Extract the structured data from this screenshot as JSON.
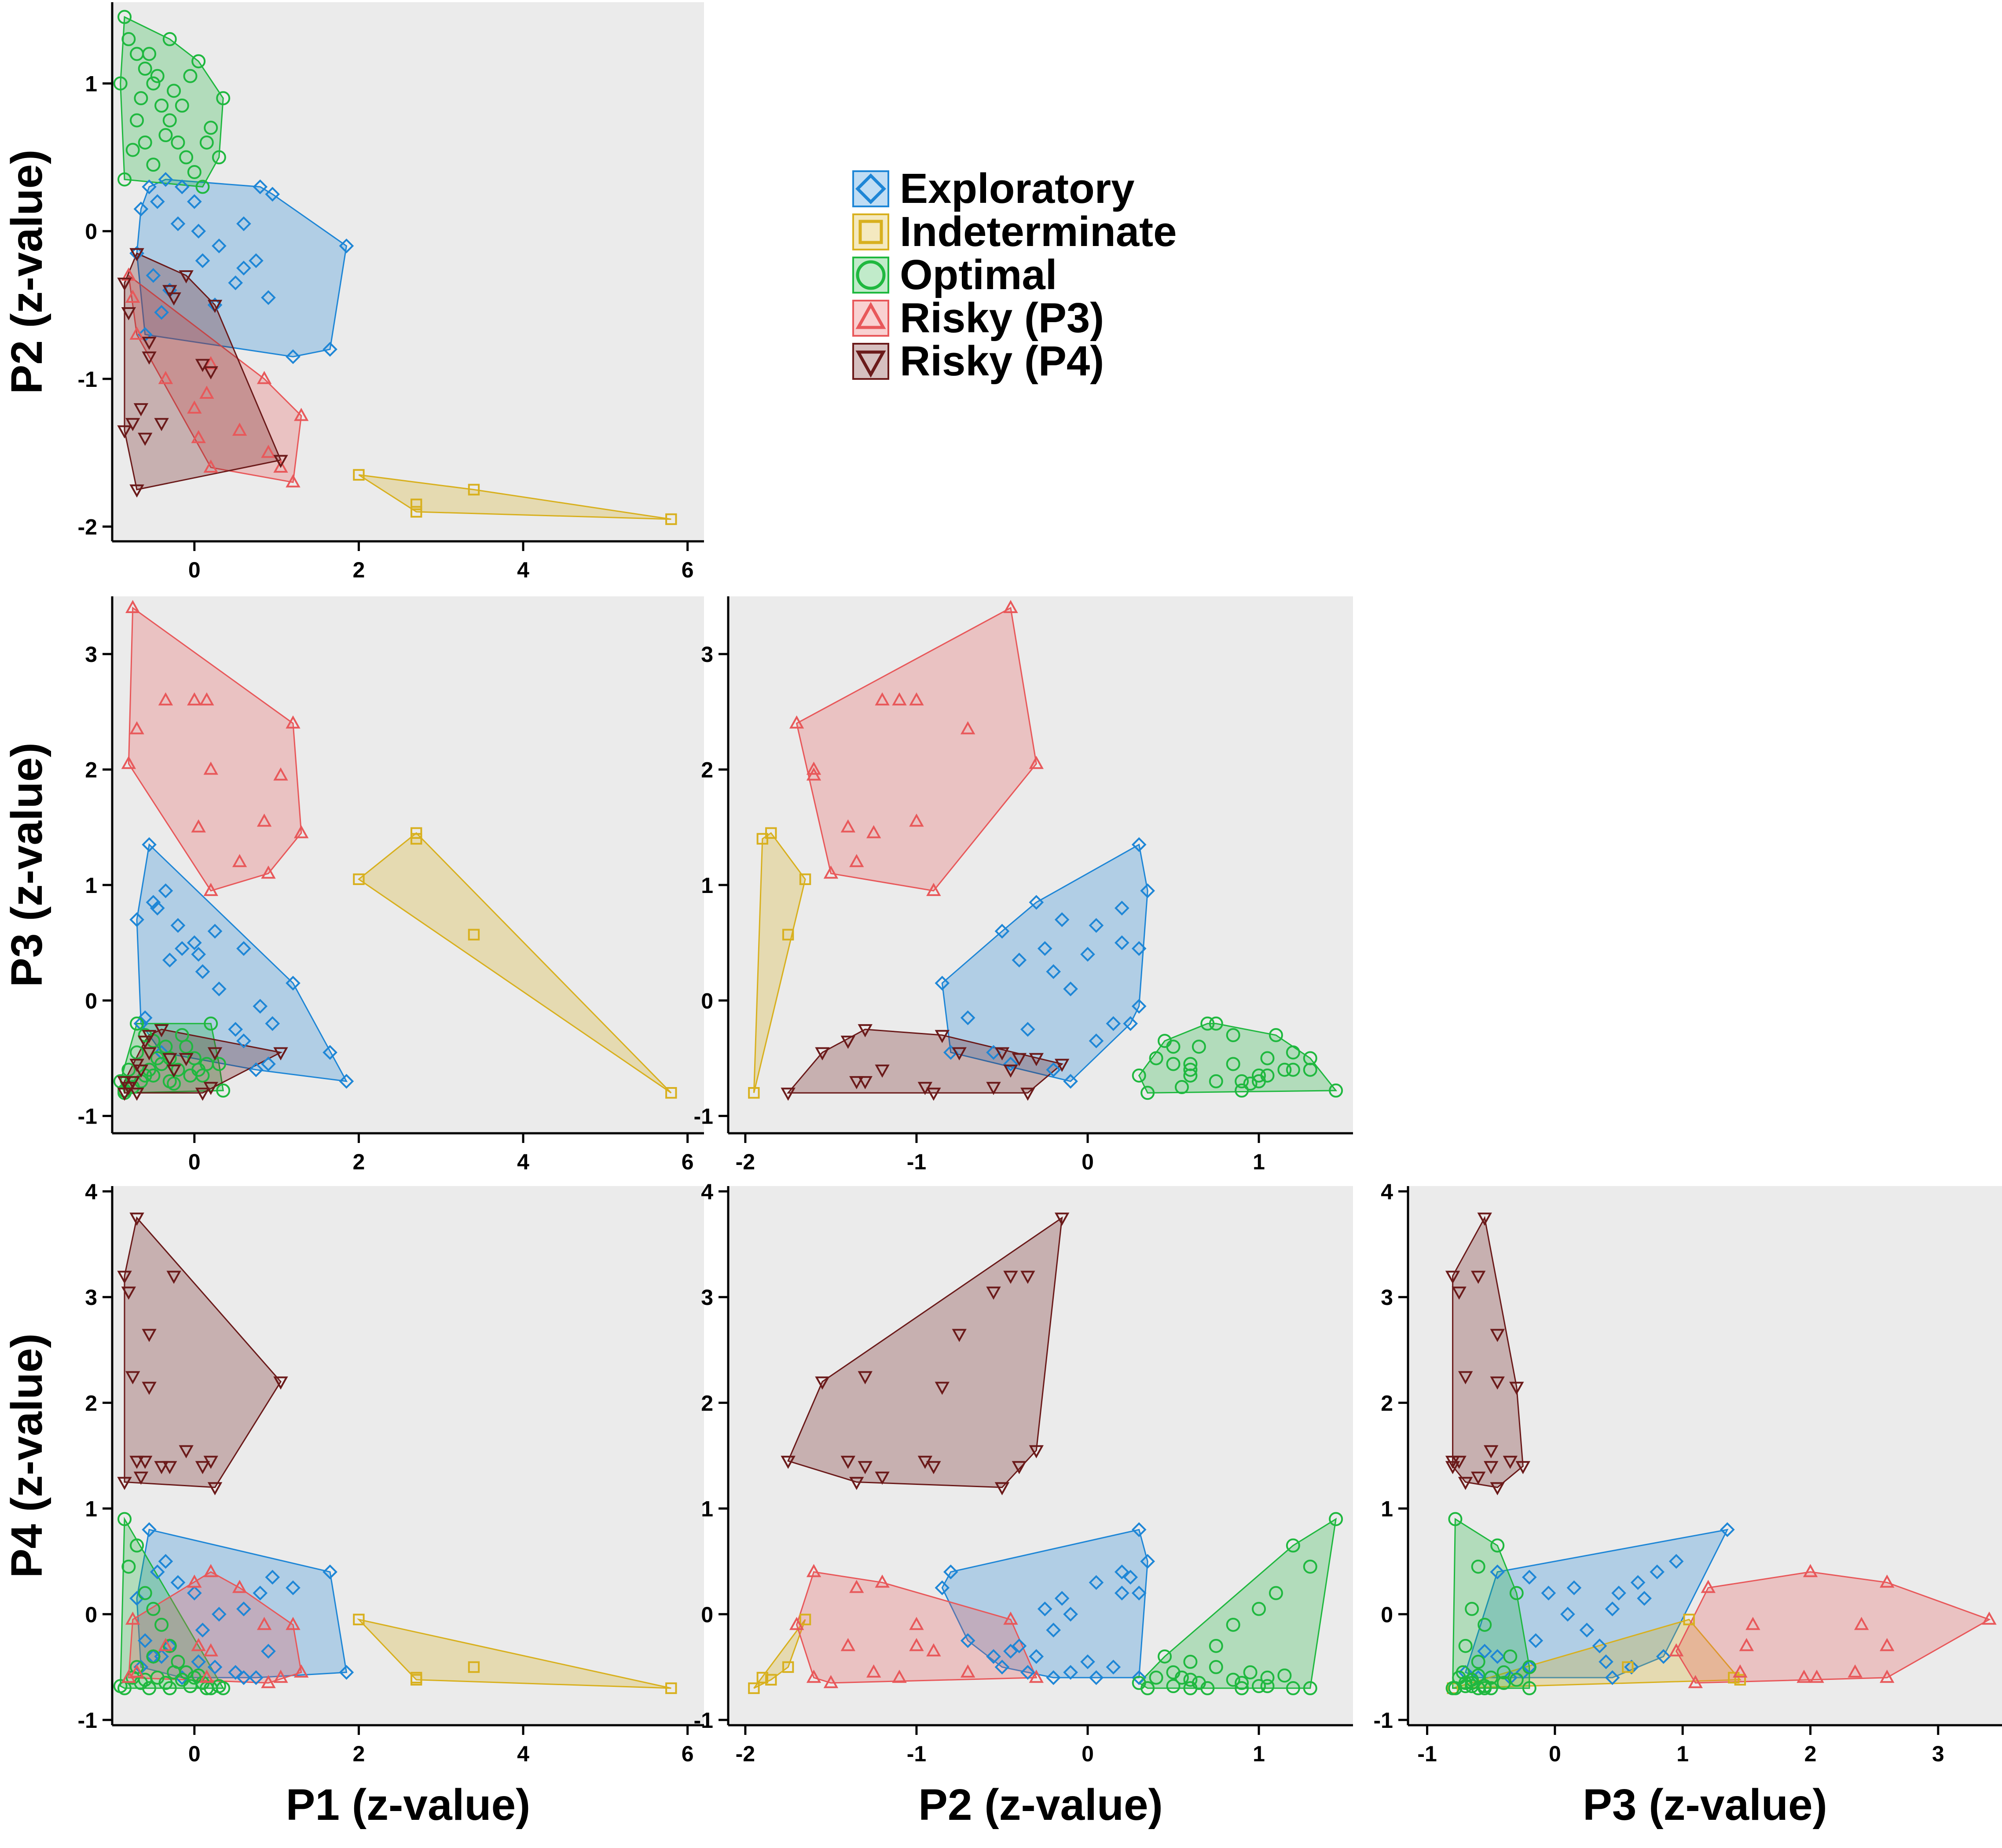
{
  "chart_data": {
    "type": "scatter",
    "title": "",
    "legend": [
      {
        "key": "exploratory",
        "label": "Exploratory"
      },
      {
        "key": "indeterminate",
        "label": "Indeterminate"
      },
      {
        "key": "optimal",
        "label": "Optimal"
      },
      {
        "key": "riskyP3",
        "label": "Risky (P3)"
      },
      {
        "key": "riskyP4",
        "label": "Risky (P4)"
      }
    ],
    "colors": {
      "exploratory": "#1E86D6",
      "indeterminate": "#D8B01E",
      "optimal": "#1FB83F",
      "riskyP3": "#E8585A",
      "riskyP4": "#6B1A1A",
      "panel_bg": "#EBEBEB"
    },
    "markers": {
      "exploratory": "diamond",
      "indeterminate": "square",
      "optimal": "circle",
      "riskyP3": "triangle-up",
      "riskyP4": "triangle-down"
    },
    "axis_labels": {
      "P1": "P1 (z-value)",
      "P2": "P2 (z-value)",
      "P3": "P3 (z-value)",
      "P4": "P4 (z-value)"
    },
    "ranges": {
      "P1": [
        -1.0,
        6.2
      ],
      "P2": [
        -2.1,
        1.55
      ],
      "P3": [
        -1.15,
        3.5
      ],
      "P4": [
        -1.05,
        4.05
      ]
    },
    "ticks": {
      "P1": [
        "0",
        "2",
        "4",
        "6"
      ],
      "P2": [
        "-2",
        "-1",
        "0",
        "1"
      ],
      "P3": [
        "-1",
        "0",
        "1",
        "2",
        "3"
      ],
      "P4": [
        "-1",
        "0",
        "1",
        "2",
        "3",
        "4"
      ]
    },
    "panels": [
      {
        "name": "p1-vs-p2",
        "x": "P1",
        "y": "P2"
      },
      {
        "name": "p1-vs-p3",
        "x": "P1",
        "y": "P3"
      },
      {
        "name": "p2-vs-p3",
        "x": "P2",
        "y": "P3"
      },
      {
        "name": "p1-vs-p4",
        "x": "P1",
        "y": "P4"
      },
      {
        "name": "p2-vs-p4",
        "x": "P2",
        "y": "P4"
      },
      {
        "name": "p3-vs-p4",
        "x": "P3",
        "y": "P4"
      }
    ],
    "series": [
      {
        "key": "exploratory",
        "points": [
          [
            -0.65,
            0.15,
            -0.2,
            -0.5
          ],
          [
            -0.55,
            0.3,
            1.35,
            0.8
          ],
          [
            -0.45,
            0.2,
            0.8,
            0.4
          ],
          [
            -0.35,
            0.35,
            0.95,
            0.5
          ],
          [
            -0.2,
            0.05,
            0.65,
            0.3
          ],
          [
            0,
            0.2,
            0.5,
            0.2
          ],
          [
            0.3,
            -0.1,
            0.1,
            0.0
          ],
          [
            0.6,
            -0.25,
            0.45,
            0.05
          ],
          [
            0.8,
            0.3,
            -0.05,
            0.2
          ],
          [
            0.95,
            0.25,
            -0.2,
            0.35
          ],
          [
            1.2,
            -0.85,
            0.15,
            0.25
          ],
          [
            1.65,
            -0.8,
            -0.45,
            0.4
          ],
          [
            1.85,
            -0.1,
            -0.7,
            -0.55
          ],
          [
            -0.7,
            -0.15,
            0.7,
            0.15
          ],
          [
            -0.5,
            -0.3,
            0.85,
            -0.4
          ],
          [
            -0.3,
            -0.4,
            0.35,
            -0.3
          ],
          [
            0.1,
            -0.2,
            0.25,
            -0.15
          ],
          [
            0.5,
            -0.35,
            -0.25,
            -0.55
          ],
          [
            0.75,
            -0.2,
            -0.6,
            -0.6
          ],
          [
            0.9,
            -0.45,
            -0.55,
            -0.35
          ],
          [
            -0.6,
            -0.7,
            -0.15,
            -0.25
          ],
          [
            0.25,
            -0.5,
            0.6,
            -0.5
          ],
          [
            0.05,
            0.0,
            0.4,
            -0.45
          ],
          [
            -0.15,
            0.3,
            0.45,
            -0.6
          ],
          [
            0.6,
            0.05,
            -0.35,
            -0.6
          ],
          [
            -0.4,
            -0.55,
            -0.45,
            -0.4
          ]
        ]
      },
      {
        "key": "indeterminate",
        "points": [
          [
            2.0,
            -1.65,
            1.05,
            -0.05
          ],
          [
            2.7,
            -1.85,
            1.45,
            -0.62
          ],
          [
            2.7,
            -1.9,
            1.4,
            -0.6
          ],
          [
            3.4,
            -1.75,
            0.57,
            -0.5
          ],
          [
            5.8,
            -1.95,
            -0.8,
            -0.7
          ]
        ]
      },
      {
        "key": "optimal",
        "points": [
          [
            -0.85,
            1.45,
            -0.78,
            0.9
          ],
          [
            -0.8,
            1.3,
            -0.6,
            0.45
          ],
          [
            -0.7,
            1.2,
            -0.45,
            0.65
          ],
          [
            -0.6,
            1.1,
            -0.3,
            0.2
          ],
          [
            -0.5,
            1.0,
            -0.65,
            0.05
          ],
          [
            -0.4,
            0.85,
            -0.55,
            -0.1
          ],
          [
            -0.3,
            0.75,
            -0.7,
            -0.3
          ],
          [
            -0.2,
            0.6,
            -0.6,
            -0.45
          ],
          [
            -0.1,
            0.5,
            -0.4,
            -0.55
          ],
          [
            0,
            0.4,
            -0.5,
            -0.6
          ],
          [
            0.1,
            0.3,
            -0.65,
            -0.65
          ],
          [
            0.2,
            0.7,
            -0.2,
            -0.7
          ],
          [
            0.3,
            0.5,
            -0.55,
            -0.68
          ],
          [
            -0.85,
            0.35,
            -0.8,
            -0.7
          ],
          [
            -0.75,
            0.55,
            -0.75,
            -0.6
          ],
          [
            -0.65,
            0.9,
            -0.7,
            -0.65
          ],
          [
            -0.55,
            1.2,
            -0.6,
            -0.7
          ],
          [
            -0.45,
            1.05,
            -0.5,
            -0.6
          ],
          [
            -0.35,
            0.65,
            -0.4,
            -0.65
          ],
          [
            -0.25,
            0.95,
            -0.72,
            -0.55
          ],
          [
            -0.15,
            0.85,
            -0.3,
            -0.62
          ],
          [
            -0.05,
            1.05,
            -0.65,
            -0.68
          ],
          [
            0.15,
            0.6,
            -0.55,
            -0.7
          ],
          [
            -0.9,
            1.0,
            -0.7,
            -0.68
          ],
          [
            -0.7,
            0.75,
            -0.2,
            -0.5
          ],
          [
            -0.5,
            0.45,
            -0.35,
            -0.4
          ],
          [
            -0.3,
            1.3,
            -0.5,
            -0.7
          ],
          [
            0.05,
            1.15,
            -0.6,
            -0.58
          ],
          [
            0.35,
            0.9,
            -0.78,
            -0.7
          ],
          [
            -0.6,
            0.6,
            -0.65,
            -0.62
          ]
        ]
      },
      {
        "key": "riskyP3",
        "points": [
          [
            -0.75,
            -0.45,
            3.4,
            -0.05
          ],
          [
            -0.7,
            -0.7,
            2.35,
            -0.55
          ],
          [
            -0.35,
            -1.0,
            2.6,
            -0.3
          ],
          [
            0,
            -1.2,
            2.6,
            0.3
          ],
          [
            0.2,
            -1.6,
            2.0,
            0.4
          ],
          [
            0.85,
            -1.0,
            1.55,
            -0.1
          ],
          [
            1.2,
            -1.7,
            2.4,
            -0.1
          ],
          [
            1.3,
            -1.25,
            1.45,
            -0.55
          ],
          [
            1.05,
            -1.6,
            1.95,
            -0.6
          ],
          [
            0.55,
            -1.35,
            1.2,
            0.25
          ],
          [
            0.9,
            -1.5,
            1.1,
            -0.65
          ],
          [
            0.2,
            -0.9,
            0.95,
            -0.35
          ],
          [
            -0.8,
            -0.3,
            2.05,
            -0.6
          ],
          [
            0.15,
            -1.1,
            2.6,
            -0.6
          ],
          [
            0.05,
            -1.4,
            1.5,
            -0.3
          ]
        ]
      },
      {
        "key": "riskyP4",
        "points": [
          [
            -0.7,
            -0.15,
            -0.55,
            3.75
          ],
          [
            -0.85,
            -0.35,
            -0.8,
            3.2
          ],
          [
            -0.8,
            -0.55,
            -0.75,
            3.05
          ],
          [
            -0.25,
            -0.45,
            -0.6,
            3.2
          ],
          [
            -0.55,
            -0.75,
            -0.45,
            2.65
          ],
          [
            -0.75,
            -1.3,
            -0.7,
            2.25
          ],
          [
            -0.55,
            -0.85,
            -0.3,
            2.15
          ],
          [
            1.05,
            -1.55,
            -0.45,
            2.2
          ],
          [
            -0.7,
            -1.75,
            -0.8,
            1.45
          ],
          [
            -0.6,
            -1.4,
            -0.35,
            1.45
          ],
          [
            -0.4,
            -1.3,
            -0.25,
            1.4
          ],
          [
            -0.1,
            -0.3,
            -0.5,
            1.55
          ],
          [
            0.2,
            -0.95,
            -0.75,
            1.45
          ],
          [
            0.25,
            -0.5,
            -0.45,
            1.2
          ],
          [
            -0.85,
            -1.35,
            -0.7,
            1.25
          ],
          [
            -0.65,
            -1.2,
            -0.6,
            1.3
          ],
          [
            -0.3,
            -0.4,
            -0.5,
            1.4
          ],
          [
            0.1,
            -0.9,
            -0.8,
            1.4
          ]
        ]
      }
    ]
  }
}
